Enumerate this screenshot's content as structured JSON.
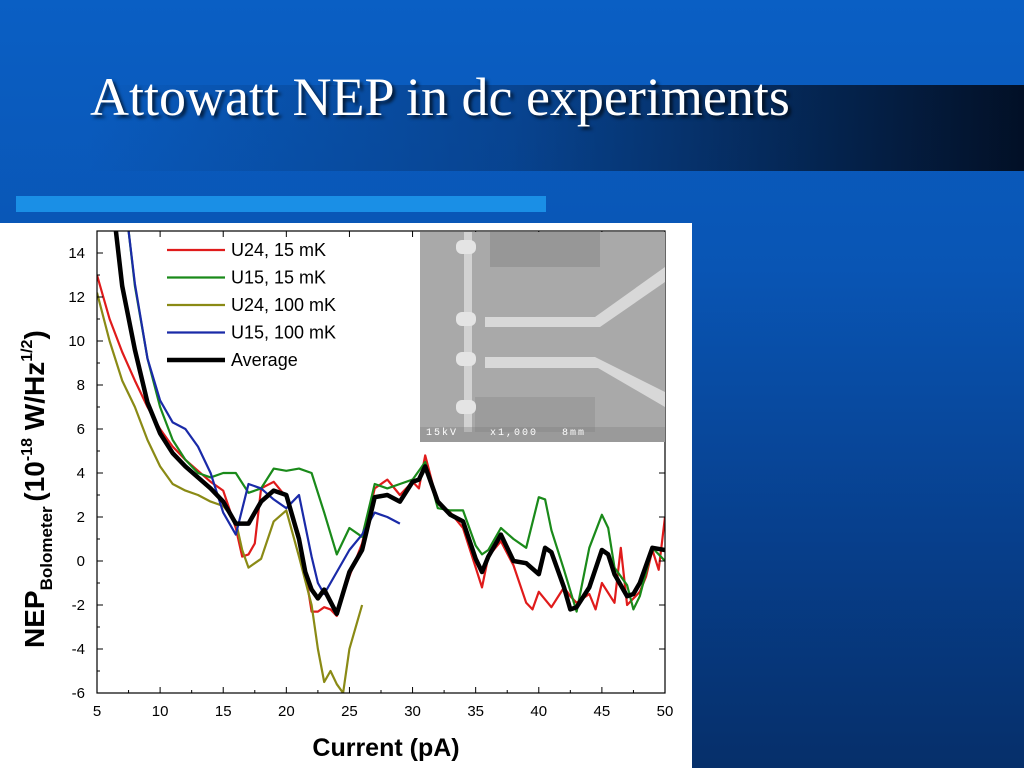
{
  "slide": {
    "title": "Attowatt NEP in dc experiments",
    "colors": {
      "background": "#0955b4",
      "accent_bar": "#1a8fe6",
      "title_text": "#ffffff"
    }
  },
  "inset": {
    "description_icon": "sem-micrograph-image",
    "caption": "15kV    x1,000   8mm"
  },
  "chart_data": {
    "type": "line",
    "xlabel": "Current (pA)",
    "ylabel_main": "NEP",
    "ylabel_sub": "Bolometer",
    "ylabel_unit_open": "(10",
    "ylabel_exp1": "-18",
    "ylabel_unit_mid": " W/Hz",
    "ylabel_exp2": "1/2",
    "ylabel_unit_close": ")",
    "xlim": [
      5,
      50
    ],
    "ylim": [
      -6,
      15
    ],
    "xticks": [
      5,
      10,
      15,
      20,
      25,
      30,
      35,
      40,
      45,
      50
    ],
    "yticks": [
      -6,
      -4,
      -2,
      0,
      2,
      4,
      6,
      8,
      10,
      12,
      14
    ],
    "legend_position": "top-left",
    "series": [
      {
        "name": "U24, 15 mK",
        "color": "#e01b1b",
        "width": 2.2,
        "x": [
          5,
          6,
          7,
          8,
          9,
          10,
          11,
          12,
          13,
          14,
          15,
          16,
          16.5,
          17,
          17.5,
          18,
          19,
          20,
          21,
          21.5,
          22,
          22.5,
          23,
          23.5,
          24,
          24.5,
          25,
          26,
          27,
          28,
          29,
          30,
          30.5,
          31,
          32,
          33,
          34,
          35,
          35.5,
          36,
          37,
          38,
          39,
          39.5,
          40,
          41,
          42,
          42.5,
          43,
          44,
          44.5,
          45,
          46,
          46.5,
          47,
          48,
          48.5,
          49,
          49.5,
          50
        ],
        "y": [
          13,
          11,
          9.5,
          8.2,
          7,
          6,
          5.2,
          4.6,
          4.1,
          3.6,
          3.2,
          1.5,
          0.2,
          0.3,
          0.8,
          3.3,
          3.6,
          2.9,
          1.2,
          -0.5,
          -2.3,
          -2.3,
          -2.1,
          -2.2,
          -2.5,
          -1.5,
          -0.7,
          0.8,
          3.3,
          3.7,
          3.0,
          3.6,
          3.3,
          4.8,
          2.6,
          2.2,
          1.5,
          -0.3,
          -1.2,
          0.2,
          0.9,
          -0.2,
          -1.9,
          -2.2,
          -1.4,
          -2.1,
          -1.2,
          -1.6,
          -1.9,
          -1.5,
          -2.2,
          -1.0,
          -1.9,
          0.6,
          -2.0,
          -1.4,
          -0.7,
          0.5,
          -0.4,
          2.0
        ]
      },
      {
        "name": "U15, 15 mK",
        "color": "#1a8a1a",
        "width": 2.2,
        "x": [
          7.5,
          8,
          9,
          10,
          11,
          12,
          13,
          14,
          15,
          16,
          17,
          18,
          19,
          20,
          21,
          22,
          23,
          24,
          25,
          26,
          27,
          28,
          29,
          30,
          31,
          32,
          33,
          34,
          35,
          35.5,
          36,
          37,
          38,
          39,
          40,
          40.5,
          41,
          42,
          43,
          44,
          45,
          45.5,
          46,
          47,
          47.5,
          48,
          49,
          50
        ],
        "y": [
          15,
          12.5,
          9.2,
          7.0,
          5.5,
          4.6,
          4.0,
          3.8,
          4.0,
          4.0,
          3.1,
          3.3,
          4.2,
          4.1,
          4.2,
          4.0,
          2.2,
          0.3,
          1.5,
          1.1,
          3.5,
          3.3,
          3.5,
          3.7,
          4.5,
          2.4,
          2.3,
          2.3,
          0.7,
          0.3,
          0.5,
          1.5,
          1.0,
          0.6,
          2.9,
          2.8,
          1.4,
          -0.4,
          -2.3,
          0.6,
          2.1,
          1.5,
          -0.3,
          -1.1,
          -2.2,
          -1.6,
          0.6,
          0.0
        ]
      },
      {
        "name": "U24, 100 mK",
        "color": "#8a8a15",
        "width": 2.2,
        "x": [
          5,
          6,
          7,
          8,
          9,
          10,
          11,
          12,
          13,
          14,
          15,
          16,
          16.5,
          17,
          17.5,
          18,
          19,
          20,
          21,
          22,
          22.5,
          23,
          23.5,
          24,
          24.5,
          25,
          26
        ],
        "y": [
          12.2,
          10,
          8.2,
          7.0,
          5.5,
          4.3,
          3.5,
          3.2,
          3.0,
          2.7,
          2.5,
          1.8,
          0.5,
          -0.3,
          -0.1,
          0.1,
          1.8,
          2.3,
          0.2,
          -2.0,
          -4.0,
          -5.5,
          -5.0,
          -5.6,
          -6.0,
          -4.0,
          -2.0
        ]
      },
      {
        "name": "U15, 100 mK",
        "color": "#1a2aa8",
        "width": 2.2,
        "x": [
          7.5,
          8,
          9,
          10,
          11,
          12,
          13,
          14,
          15,
          16,
          17,
          18,
          19,
          20,
          21,
          22,
          22.5,
          23,
          23.5,
          24,
          25,
          26,
          27,
          28,
          29
        ],
        "y": [
          15,
          12.6,
          9.2,
          7.3,
          6.3,
          6.0,
          5.2,
          4.0,
          2.2,
          1.2,
          3.5,
          3.3,
          2.8,
          2.4,
          3.0,
          0.2,
          -1.0,
          -1.5,
          -1.0,
          -0.5,
          0.5,
          1.2,
          2.2,
          2.0,
          1.7
        ]
      },
      {
        "name": "Average",
        "color": "#000000",
        "width": 4.5,
        "x": [
          6.5,
          7,
          8,
          9,
          10,
          11,
          12,
          13,
          14,
          15,
          16,
          17,
          18,
          19,
          20,
          21,
          21.5,
          22,
          22.5,
          23,
          24,
          25,
          26,
          27,
          28,
          29,
          30,
          30.5,
          31,
          32,
          33,
          34,
          35,
          35.5,
          36,
          37,
          38,
          39,
          40,
          40.5,
          41,
          42,
          42.5,
          43,
          44,
          45,
          45.5,
          46,
          47,
          47.5,
          48,
          49,
          50
        ],
        "y": [
          15,
          12.5,
          9.6,
          7.2,
          5.8,
          4.9,
          4.3,
          3.8,
          3.3,
          2.7,
          1.7,
          1.7,
          2.7,
          3.2,
          3.0,
          1.0,
          -0.5,
          -1.3,
          -1.7,
          -1.3,
          -2.4,
          -0.5,
          0.5,
          2.9,
          3.0,
          2.7,
          3.6,
          3.7,
          4.3,
          2.7,
          2.1,
          1.8,
          0.1,
          -0.5,
          0.2,
          1.2,
          0.0,
          -0.1,
          -0.6,
          0.6,
          0.4,
          -1.2,
          -2.2,
          -2.1,
          -1.2,
          0.5,
          0.3,
          -0.6,
          -1.6,
          -1.5,
          -1.0,
          0.6,
          0.5
        ]
      }
    ]
  }
}
